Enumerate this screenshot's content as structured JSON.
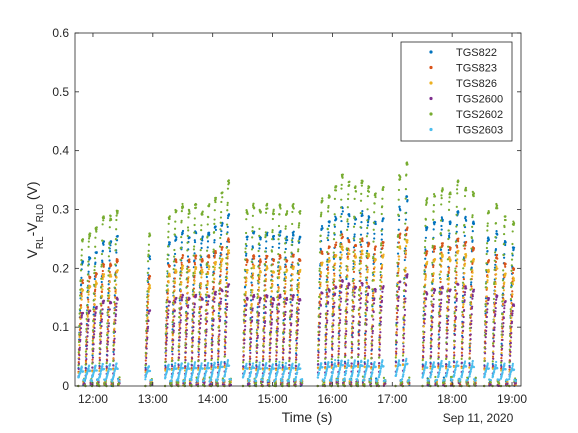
{
  "chart_data": {
    "type": "scatter",
    "title": "",
    "xlabel": "Time (s)",
    "ylabel_main": "V",
    "ylabel_sub1": "RL",
    "ylabel_mid": "-V",
    "ylabel_sub2": "RL0",
    "ylabel_tail": " (V)",
    "date_label": "Sep 11, 2020",
    "xlim_hours": [
      11.7,
      19.15
    ],
    "ylim": [
      0,
      0.6
    ],
    "x_ticks": [
      {
        "h": 12,
        "label": "12:00"
      },
      {
        "h": 13,
        "label": "13:00"
      },
      {
        "h": 14,
        "label": "14:00"
      },
      {
        "h": 15,
        "label": "15:00"
      },
      {
        "h": 16,
        "label": "16:00"
      },
      {
        "h": 17,
        "label": "17:00"
      },
      {
        "h": 18,
        "label": "18:00"
      },
      {
        "h": 19,
        "label": "19:00"
      }
    ],
    "y_ticks": [
      {
        "v": 0,
        "label": "0"
      },
      {
        "v": 0.1,
        "label": "0.1"
      },
      {
        "v": 0.2,
        "label": "0.2"
      },
      {
        "v": 0.3,
        "label": "0.3"
      },
      {
        "v": 0.4,
        "label": "0.4"
      },
      {
        "v": 0.5,
        "label": "0.5"
      },
      {
        "v": 0.6,
        "label": "0.6"
      }
    ],
    "legend_position": "top-right",
    "series": [
      {
        "name": "TGS822",
        "color": "#0072BD",
        "scale": 0.85,
        "drop": 0.0
      },
      {
        "name": "TGS823",
        "color": "#D95319",
        "scale": 0.72,
        "drop": 0.0
      },
      {
        "name": "TGS826",
        "color": "#EDB120",
        "scale": 0.66,
        "drop": 0.0
      },
      {
        "name": "TGS2600",
        "color": "#7E2F8E",
        "scale": 0.5,
        "drop": 0.0
      },
      {
        "name": "TGS2602",
        "color": "#77AC30",
        "scale": 1.0,
        "drop": 0.0
      },
      {
        "name": "TGS2603",
        "color": "#4DBEEE",
        "scale": 0.1,
        "drop": 0.0
      }
    ],
    "pulses": [
      {
        "t": 11.8,
        "peak": 0.25
      },
      {
        "t": 11.92,
        "peak": 0.26
      },
      {
        "t": 12.03,
        "peak": 0.27
      },
      {
        "t": 12.15,
        "peak": 0.29
      },
      {
        "t": 12.27,
        "peak": 0.29
      },
      {
        "t": 12.38,
        "peak": 0.3
      },
      {
        "t": 12.92,
        "peak": 0.26
      },
      {
        "t": 13.25,
        "peak": 0.29
      },
      {
        "t": 13.36,
        "peak": 0.3
      },
      {
        "t": 13.47,
        "peak": 0.31
      },
      {
        "t": 13.58,
        "peak": 0.3
      },
      {
        "t": 13.69,
        "peak": 0.31
      },
      {
        "t": 13.8,
        "peak": 0.3
      },
      {
        "t": 13.91,
        "peak": 0.31
      },
      {
        "t": 14.02,
        "peak": 0.32
      },
      {
        "t": 14.13,
        "peak": 0.33
      },
      {
        "t": 14.24,
        "peak": 0.35
      },
      {
        "t": 14.55,
        "peak": 0.3
      },
      {
        "t": 14.66,
        "peak": 0.31
      },
      {
        "t": 14.77,
        "peak": 0.3
      },
      {
        "t": 14.88,
        "peak": 0.31
      },
      {
        "t": 14.99,
        "peak": 0.3
      },
      {
        "t": 15.1,
        "peak": 0.31
      },
      {
        "t": 15.21,
        "peak": 0.3
      },
      {
        "t": 15.32,
        "peak": 0.31
      },
      {
        "t": 15.43,
        "peak": 0.3
      },
      {
        "t": 15.8,
        "peak": 0.32
      },
      {
        "t": 15.92,
        "peak": 0.33
      },
      {
        "t": 16.03,
        "peak": 0.34
      },
      {
        "t": 16.14,
        "peak": 0.36
      },
      {
        "t": 16.25,
        "peak": 0.35
      },
      {
        "t": 16.36,
        "peak": 0.34
      },
      {
        "t": 16.47,
        "peak": 0.35
      },
      {
        "t": 16.58,
        "peak": 0.34
      },
      {
        "t": 16.69,
        "peak": 0.33
      },
      {
        "t": 16.82,
        "peak": 0.34
      },
      {
        "t": 17.1,
        "peak": 0.36
      },
      {
        "t": 17.22,
        "peak": 0.38
      },
      {
        "t": 17.55,
        "peak": 0.32
      },
      {
        "t": 17.68,
        "peak": 0.33
      },
      {
        "t": 17.81,
        "peak": 0.34
      },
      {
        "t": 17.94,
        "peak": 0.33
      },
      {
        "t": 18.07,
        "peak": 0.35
      },
      {
        "t": 18.2,
        "peak": 0.34
      },
      {
        "t": 18.33,
        "peak": 0.33
      },
      {
        "t": 18.58,
        "peak": 0.3
      },
      {
        "t": 18.72,
        "peak": 0.31
      },
      {
        "t": 18.86,
        "peak": 0.29
      },
      {
        "t": 19.0,
        "peak": 0.28
      }
    ]
  }
}
